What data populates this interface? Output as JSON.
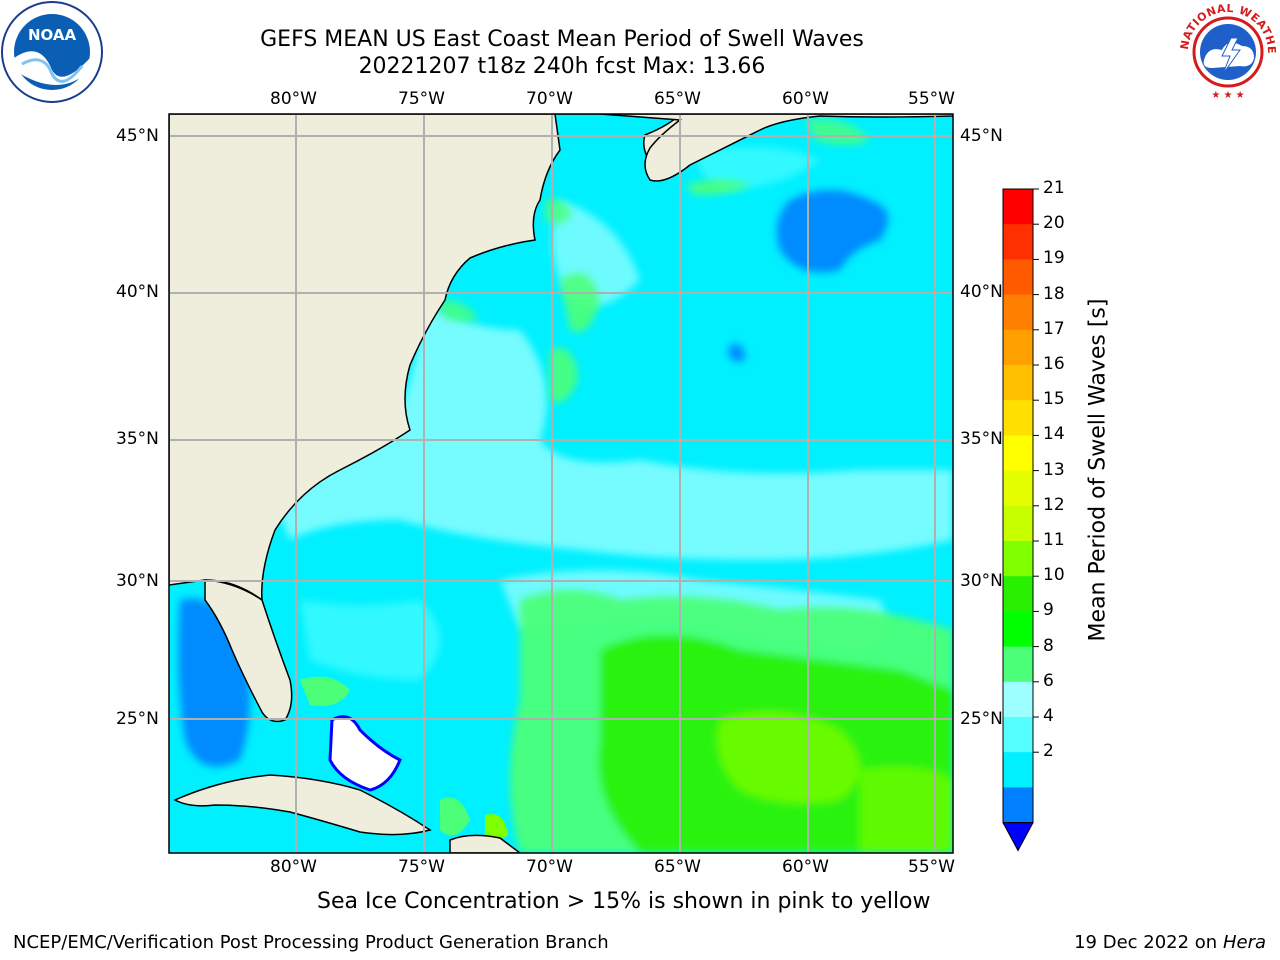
{
  "title": {
    "line1": "GEFS MEAN US East Coast Mean Period of Swell Waves",
    "line2": "20221207 t18z 240h fcst   Max: 13.66"
  },
  "map": {
    "lon_labels": [
      "80°W",
      "75°W",
      "70°W",
      "65°W",
      "60°W",
      "55°W"
    ],
    "lat_labels": [
      "45°N",
      "40°N",
      "35°N",
      "30°N",
      "25°N"
    ],
    "colors": {
      "land": "#efeddc",
      "ocean_base": "#00f0ff",
      "graticule": "#b0b0b0"
    }
  },
  "colorbar": {
    "label": "Mean Period of Swell Waves [s]",
    "ticks": [
      "21",
      "20",
      "19",
      "18",
      "17",
      "16",
      "15",
      "14",
      "13",
      "12",
      "11",
      "10",
      "9",
      "8",
      "6",
      "4",
      "2"
    ],
    "colors": [
      "#ff0000",
      "#ff3000",
      "#ff5a00",
      "#ff8000",
      "#ffa000",
      "#ffc000",
      "#ffe000",
      "#ffff00",
      "#e5ff00",
      "#c8ff00",
      "#80ff00",
      "#28f000",
      "#00ff00",
      "#4cff78",
      "#9dffff",
      "#54ffff",
      "#00f0ff",
      "#0080ff",
      "#0000ff"
    ]
  },
  "footer": {
    "sea_ice_note": "Sea Ice Concentration > 15% is shown in pink to yellow",
    "credit": "NCEP/EMC/Verification Post Processing Product Generation Branch",
    "date": "19 Dec 2022 on",
    "host": "Hera"
  },
  "logos": {
    "noaa_text": "NOAA",
    "nws_text": "NATIONAL WEATHER SERVICE"
  }
}
